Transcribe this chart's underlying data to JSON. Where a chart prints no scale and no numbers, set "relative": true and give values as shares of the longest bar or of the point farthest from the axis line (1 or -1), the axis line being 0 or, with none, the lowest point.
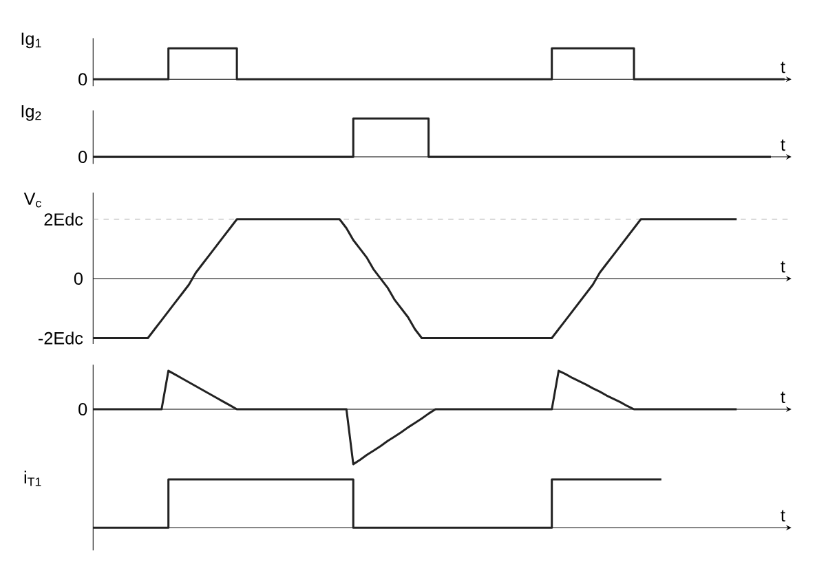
{
  "chart_data": [
    {
      "type": "step",
      "relative": true,
      "ylabel": "Ig$_{1}$",
      "xlabel": "t",
      "annotations": [
        "0"
      ],
      "tick_labels": false,
      "line_style": "solid",
      "categories": [
        null,
        null,
        null,
        null,
        null,
        null,
        null,
        null,
        null,
        null,
        null,
        null,
        null,
        null,
        null,
        null,
        null,
        null,
        null,
        null,
        null,
        null,
        null,
        null,
        null,
        null,
        null,
        null,
        null,
        null,
        null,
        null,
        null,
        null,
        null,
        null,
        null,
        null,
        null,
        null,
        null,
        null,
        null,
        null,
        null,
        null,
        null,
        null,
        null,
        null,
        null,
        null,
        null,
        null,
        null,
        null,
        null,
        null,
        null,
        null,
        null,
        null,
        null,
        null,
        null,
        null,
        null,
        null,
        null,
        null,
        null,
        null,
        null,
        null,
        null,
        null,
        null,
        null,
        null,
        null,
        null,
        null,
        null,
        null,
        null,
        null,
        null,
        null,
        null,
        null,
        null,
        null,
        null,
        null,
        null,
        null,
        null,
        null,
        null,
        null,
        null,
        null
      ],
      "series": [
        {
          "color": "#222222",
          "values": [
            0,
            0,
            0,
            0,
            0,
            0,
            0,
            0,
            0,
            0,
            0,
            1,
            1,
            1,
            1,
            1,
            1,
            1,
            1,
            1,
            1,
            0,
            0,
            0,
            0,
            0,
            0,
            0,
            0,
            0,
            0,
            0,
            0,
            0,
            0,
            0,
            0,
            0,
            0,
            0,
            0,
            0,
            0,
            0,
            0,
            0,
            0,
            0,
            0,
            0,
            0,
            0,
            0,
            0,
            0,
            0,
            0,
            0,
            0,
            0,
            0,
            0,
            0,
            0,
            0,
            0,
            0,
            1,
            1,
            1,
            1,
            1,
            1,
            1,
            1,
            1,
            1,
            1,
            1,
            0,
            0,
            0,
            0,
            0,
            0,
            0,
            0,
            0,
            0,
            0,
            0,
            0,
            0,
            0,
            0,
            0,
            0,
            0,
            0,
            0,
            0,
            0
          ]
        }
      ]
    },
    {
      "type": "step",
      "relative": true,
      "ylabel": "Ig$_{2}$",
      "xlabel": "t",
      "annotations": [
        "0"
      ],
      "tick_labels": false,
      "line_style": "solid",
      "categories": [
        null,
        null,
        null,
        null,
        null,
        null,
        null,
        null,
        null,
        null,
        null,
        null,
        null,
        null,
        null,
        null,
        null,
        null,
        null,
        null,
        null,
        null,
        null,
        null,
        null,
        null,
        null,
        null,
        null,
        null,
        null,
        null,
        null,
        null,
        null,
        null,
        null,
        null,
        null,
        null,
        null,
        null,
        null,
        null,
        null,
        null,
        null,
        null,
        null,
        null,
        null,
        null,
        null,
        null,
        null,
        null,
        null,
        null,
        null,
        null,
        null,
        null,
        null,
        null,
        null,
        null,
        null,
        null,
        null,
        null,
        null,
        null,
        null,
        null,
        null,
        null,
        null,
        null,
        null,
        null,
        null,
        null,
        null,
        null,
        null,
        null,
        null,
        null,
        null,
        null,
        null,
        null,
        null,
        null,
        null,
        null,
        null,
        null,
        null,
        null,
        null,
        null
      ],
      "series": [
        {
          "color": "#222222",
          "values": [
            0,
            0,
            0,
            0,
            0,
            0,
            0,
            0,
            0,
            0,
            0,
            0,
            0,
            0,
            0,
            0,
            0,
            0,
            0,
            0,
            0,
            0,
            0,
            0,
            0,
            0,
            0,
            0,
            0,
            0,
            0,
            0,
            0,
            0,
            0,
            0,
            0,
            0,
            1,
            1,
            1,
            1,
            1,
            1,
            1,
            1,
            1,
            1,
            1,
            0,
            0,
            0,
            0,
            0,
            0,
            0,
            0,
            0,
            0,
            0,
            0,
            0,
            0,
            0,
            0,
            0,
            0,
            0,
            0,
            0,
            0,
            0,
            0,
            0,
            0,
            0,
            0,
            0,
            0,
            0,
            0,
            0,
            0,
            0,
            0,
            0,
            0,
            0,
            0,
            0,
            0,
            0,
            0,
            0,
            0,
            0,
            0,
            0,
            0,
            0,
            null,
            null
          ]
        }
      ]
    },
    {
      "type": "line",
      "ylabel": "V$_{c}$",
      "xlabel": "t",
      "ylim": [
        -2.2,
        2.9
      ],
      "yticks": [
        {
          "value": -2,
          "label": "-2Edc"
        },
        {
          "value": 0,
          "label": "0"
        },
        {
          "value": 2,
          "label": "2Edc"
        }
      ],
      "tick_labels": "y",
      "line_style": "solid",
      "categories": [
        null,
        null,
        null,
        null,
        null,
        null,
        null,
        null,
        null,
        null,
        null,
        null,
        null,
        null,
        null,
        null,
        null,
        null,
        null,
        null,
        null,
        null,
        null,
        null,
        null,
        null,
        null,
        null,
        null,
        null,
        null,
        null,
        null,
        null,
        null,
        null,
        null,
        null,
        null,
        null,
        null,
        null,
        null,
        null,
        null,
        null,
        null,
        null,
        null,
        null,
        null,
        null,
        null,
        null,
        null,
        null,
        null,
        null,
        null,
        null,
        null,
        null,
        null,
        null,
        null,
        null,
        null,
        null,
        null,
        null,
        null,
        null,
        null,
        null,
        null,
        null,
        null,
        null,
        null,
        null,
        null,
        null,
        null,
        null,
        null,
        null,
        null,
        null,
        null,
        null,
        null,
        null,
        null,
        null,
        null,
        null,
        null,
        null,
        null,
        null,
        null,
        null
      ],
      "series": [
        {
          "color": "#222222",
          "values": [
            -2,
            -2,
            -2,
            -2,
            -2,
            -2,
            -2,
            -2,
            -2,
            -1.7,
            -1.4,
            -1.1,
            -0.8,
            -0.5,
            -0.2,
            0.2,
            0.5,
            0.8,
            1.1,
            1.4,
            1.7,
            2,
            2,
            2,
            2,
            2,
            2,
            2,
            2,
            2,
            2,
            2,
            2,
            2,
            2,
            2,
            2,
            1.7,
            1.3,
            1.0,
            0.7,
            0.3,
            0,
            -0.3,
            -0.7,
            -1.0,
            -1.3,
            -1.7,
            -2,
            -2,
            -2,
            -2,
            -2,
            -2,
            -2,
            -2,
            -2,
            -2,
            -2,
            -2,
            -2,
            -2,
            -2,
            -2,
            -2,
            -2,
            -2,
            -2,
            -1.7,
            -1.4,
            -1.1,
            -0.8,
            -0.5,
            -0.2,
            0.2,
            0.5,
            0.8,
            1.1,
            1.4,
            1.7,
            2,
            2,
            2,
            2,
            2,
            2,
            2,
            2,
            2,
            2,
            2,
            2,
            2,
            2,
            2,
            null,
            null,
            null,
            null,
            null,
            null,
            null
          ]
        }
      ],
      "ref_lines": [
        {
          "axis": "y",
          "value": 2,
          "line_style": "dashed",
          "color": "#aaaaaa"
        }
      ]
    },
    {
      "type": "line",
      "relative": true,
      "xlabel": "t",
      "annotations": [
        "0"
      ],
      "tick_labels": false,
      "line_style": "solid",
      "categories": [
        null,
        null,
        null,
        null,
        null,
        null,
        null,
        null,
        null,
        null,
        null,
        null,
        null,
        null,
        null,
        null,
        null,
        null,
        null,
        null,
        null,
        null,
        null,
        null,
        null,
        null,
        null,
        null,
        null,
        null,
        null,
        null,
        null,
        null,
        null,
        null,
        null,
        null,
        null,
        null,
        null,
        null,
        null,
        null,
        null,
        null,
        null,
        null,
        null,
        null,
        null,
        null,
        null,
        null,
        null,
        null,
        null,
        null,
        null,
        null,
        null,
        null,
        null,
        null,
        null,
        null,
        null,
        null,
        null,
        null,
        null,
        null,
        null,
        null,
        null,
        null,
        null,
        null,
        null,
        null,
        null,
        null,
        null,
        null,
        null,
        null,
        null,
        null,
        null,
        null,
        null,
        null,
        null,
        null,
        null,
        null,
        null,
        null,
        null,
        null,
        null,
        null
      ],
      "series": [
        {
          "color": "#222222",
          "values": [
            0,
            0,
            0,
            0,
            0,
            0,
            0,
            0,
            0,
            0,
            0,
            0.7,
            0.63,
            0.56,
            0.49,
            0.42,
            0.35,
            0.28,
            0.21,
            0.14,
            0.07,
            0,
            0,
            0,
            0,
            0,
            0,
            0,
            0,
            0,
            0,
            0,
            0,
            0,
            0,
            0,
            0,
            0,
            -1,
            -0.92,
            -0.83,
            -0.75,
            -0.67,
            -0.58,
            -0.5,
            -0.42,
            -0.33,
            -0.25,
            -0.17,
            -0.08,
            0,
            0,
            0,
            0,
            0,
            0,
            0,
            0,
            0,
            0,
            0,
            0,
            0,
            0,
            0,
            0,
            0,
            0,
            0.7,
            0.64,
            0.57,
            0.51,
            0.45,
            0.38,
            0.32,
            0.25,
            0.19,
            0.13,
            0.06,
            0,
            0,
            0,
            0,
            0,
            0,
            0,
            0,
            0,
            0,
            0,
            0,
            0,
            0,
            0,
            0,
            null,
            null,
            null,
            null,
            null,
            null,
            null
          ]
        }
      ]
    },
    {
      "type": "step",
      "relative": true,
      "ylabel": "i$_{T1}$",
      "xlabel": "t",
      "tick_labels": false,
      "line_style": "solid",
      "categories": [
        null,
        null,
        null,
        null,
        null,
        null,
        null,
        null,
        null,
        null,
        null,
        null,
        null,
        null,
        null,
        null,
        null,
        null,
        null,
        null,
        null,
        null,
        null,
        null,
        null,
        null,
        null,
        null,
        null,
        null,
        null,
        null,
        null,
        null,
        null,
        null,
        null,
        null,
        null,
        null,
        null,
        null,
        null,
        null,
        null,
        null,
        null,
        null,
        null,
        null,
        null,
        null,
        null,
        null,
        null,
        null,
        null,
        null,
        null,
        null,
        null,
        null,
        null,
        null,
        null,
        null,
        null,
        null,
        null,
        null,
        null,
        null,
        null,
        null,
        null,
        null,
        null,
        null,
        null,
        null,
        null,
        null,
        null,
        null,
        null,
        null,
        null,
        null,
        null,
        null,
        null,
        null,
        null,
        null,
        null,
        null,
        null,
        null,
        null,
        null,
        null,
        null
      ],
      "series": [
        {
          "color": "#222222",
          "values": [
            0,
            0,
            0,
            0,
            0,
            0,
            0,
            0,
            0,
            0,
            0,
            1,
            1,
            1,
            1,
            1,
            1,
            1,
            1,
            1,
            1,
            1,
            1,
            1,
            1,
            1,
            1,
            1,
            1,
            1,
            1,
            1,
            1,
            1,
            1,
            1,
            1,
            1,
            0,
            0,
            0,
            0,
            0,
            0,
            0,
            0,
            0,
            0,
            0,
            0,
            0,
            0,
            0,
            0,
            0,
            0,
            0,
            0,
            0,
            0,
            0,
            0,
            0,
            0,
            0,
            0,
            0,
            1,
            1,
            1,
            1,
            1,
            1,
            1,
            1,
            1,
            1,
            1,
            1,
            1,
            1,
            1,
            1,
            1,
            null,
            null,
            null,
            null,
            null,
            null,
            null,
            null,
            null,
            null,
            null,
            null,
            null,
            null,
            null,
            null,
            null,
            null
          ]
        }
      ]
    }
  ]
}
